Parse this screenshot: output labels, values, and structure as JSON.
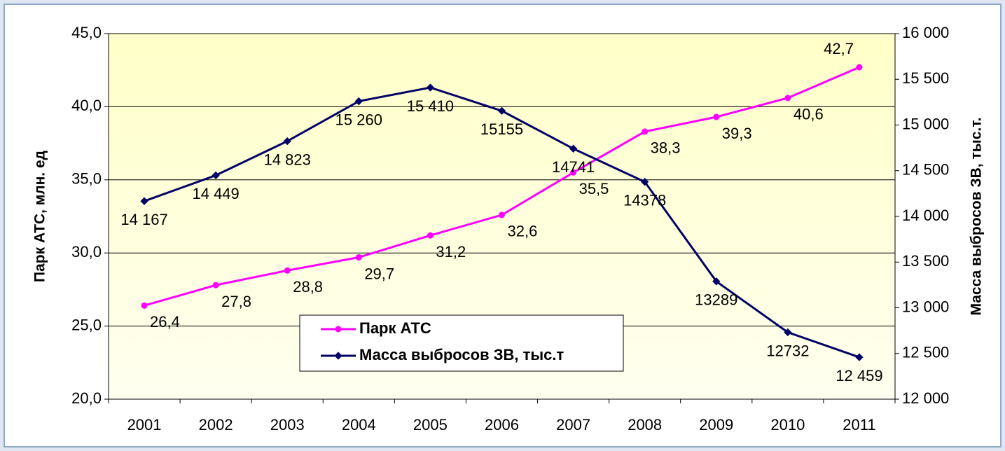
{
  "chart_data": {
    "type": "line",
    "categories": [
      "2001",
      "2002",
      "2003",
      "2004",
      "2005",
      "2006",
      "2007",
      "2008",
      "2009",
      "2010",
      "2011"
    ],
    "series": [
      {
        "name": "Парк АТС",
        "color": "#ff00ff",
        "axis": "y",
        "values": [
          26.4,
          27.8,
          28.8,
          29.7,
          31.2,
          32.6,
          35.5,
          38.3,
          39.3,
          40.6,
          42.7
        ],
        "value_labels": [
          "26,4",
          "27,8",
          "28,8",
          "29,7",
          "31,2",
          "32,6",
          "35,5",
          "38,3",
          "39,3",
          "40,6",
          "42,7"
        ]
      },
      {
        "name": "Масса выбросов ЗВ, тыс.т",
        "color": "#000066",
        "axis": "y2",
        "values": [
          14167,
          14449,
          14823,
          15260,
          15410,
          15155,
          14741,
          14378,
          13289,
          12732,
          12459
        ],
        "value_labels": [
          "14 167",
          "14 449",
          "14 823",
          "15 260",
          "15 410",
          "15155",
          "14741",
          "14378",
          "13289",
          "12732",
          "12 459"
        ]
      }
    ],
    "ylabel": "Парк АТС, млн. ед",
    "y2label": "Масса выбросов ЗВ, тыс.т.",
    "ylim": [
      20,
      45
    ],
    "yticks": [
      {
        "value": 20,
        "label": "20,0"
      },
      {
        "value": 25,
        "label": "25,0"
      },
      {
        "value": 30,
        "label": "30,0"
      },
      {
        "value": 35,
        "label": "35,0"
      },
      {
        "value": 40,
        "label": "40,0"
      },
      {
        "value": 45,
        "label": "45,0"
      }
    ],
    "y2lim": [
      12000,
      16000
    ],
    "y2ticks": [
      {
        "value": 12000,
        "label": "12 000"
      },
      {
        "value": 12500,
        "label": "12 500"
      },
      {
        "value": 13000,
        "label": "13 000"
      },
      {
        "value": 13500,
        "label": "13 500"
      },
      {
        "value": 14000,
        "label": "14 000"
      },
      {
        "value": 14500,
        "label": "14 500"
      },
      {
        "value": 15000,
        "label": "15 000"
      },
      {
        "value": 15500,
        "label": "15 500"
      },
      {
        "value": 16000,
        "label": "16 000"
      }
    ],
    "grid": true,
    "legend": "bottom-center"
  }
}
